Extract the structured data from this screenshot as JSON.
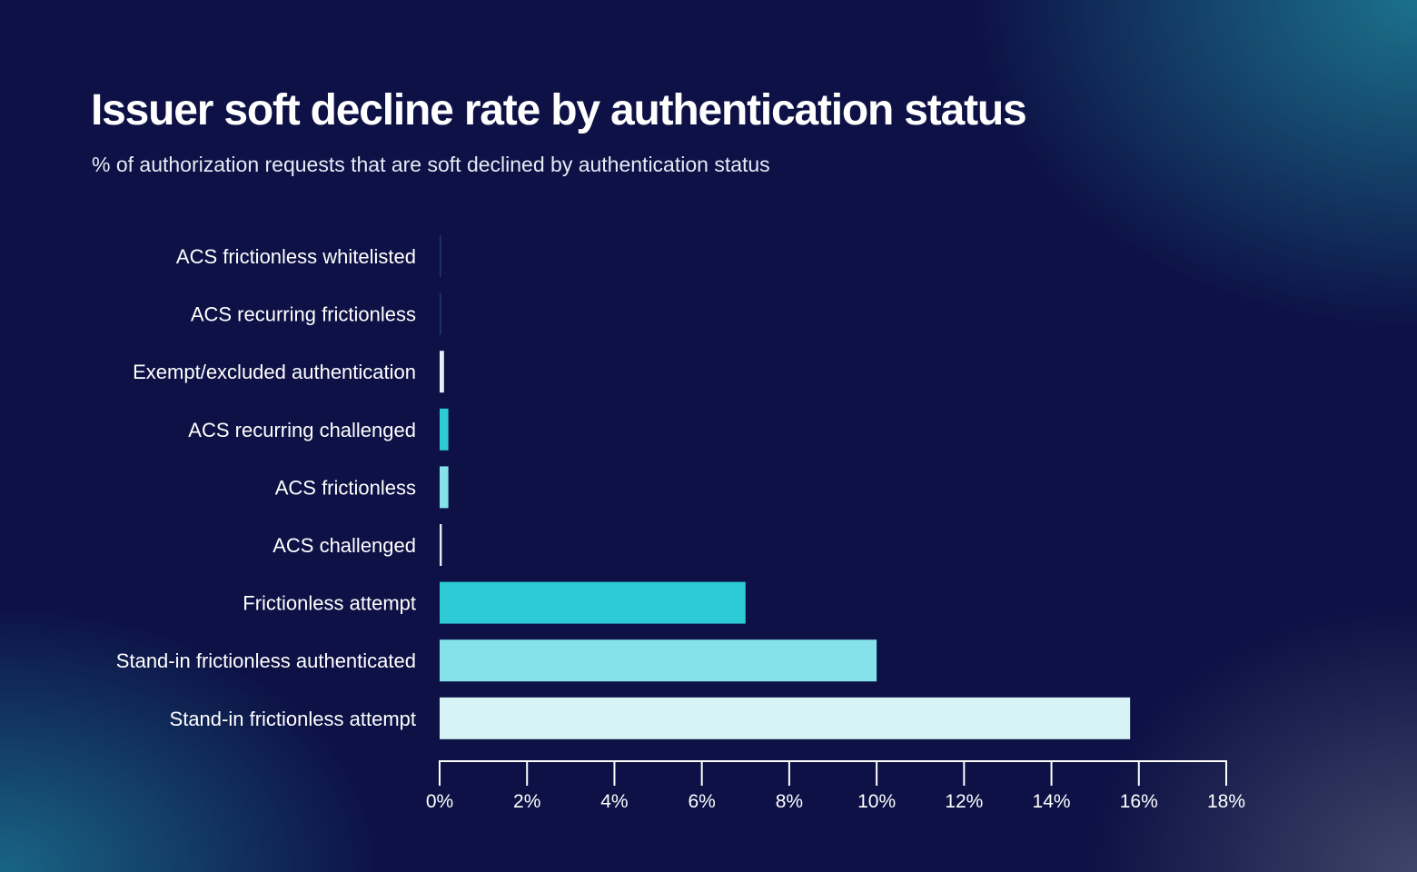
{
  "title": "Issuer soft decline rate by authentication status",
  "subtitle": "% of authorization requests that are soft declined by authentication status",
  "chart_data": {
    "type": "bar",
    "orientation": "horizontal",
    "categories": [
      "ACS frictionless whitelisted",
      "ACS recurring frictionless",
      "Exempt/excluded authentication",
      "ACS recurring challenged",
      "ACS frictionless",
      "ACS challenged",
      "Frictionless attempt",
      "Stand-in frictionless authenticated",
      "Stand-in frictionless attempt"
    ],
    "values": [
      0.02,
      0.02,
      0.1,
      0.2,
      0.2,
      0.05,
      7.0,
      10.0,
      15.8
    ],
    "colors": [
      "#1e3a6e",
      "#1e3a6e",
      "#e0f2f6",
      "#2ccbd6",
      "#85e2ea",
      "#e0f2f6",
      "#2ccbd6",
      "#85e2ea",
      "#d8f3f6"
    ],
    "xlim": [
      0,
      18
    ],
    "xticks": [
      "0%",
      "2%",
      "4%",
      "6%",
      "8%",
      "10%",
      "12%",
      "14%",
      "16%",
      "18%"
    ],
    "xlabel": "",
    "ylabel": "",
    "grid": false,
    "legend": "none"
  }
}
